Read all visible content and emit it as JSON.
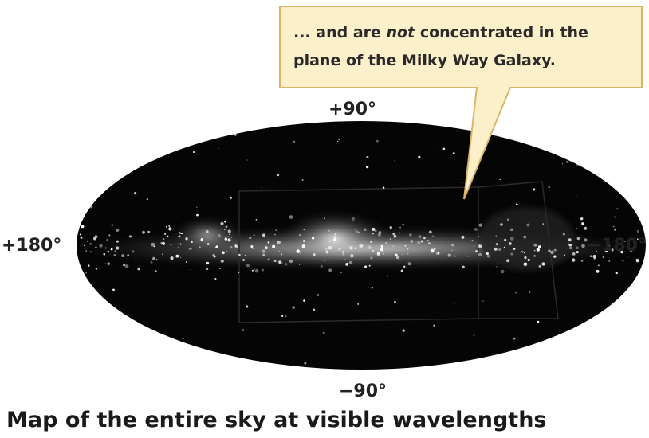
{
  "callout": {
    "line1_start": "... and are ",
    "line1_italic": "not",
    "line1_end": " concentrated in the",
    "line2": "plane of the Milky Way Galaxy."
  },
  "labels": {
    "top": "+90°",
    "left": "+180°",
    "right": "−180°",
    "bottom": "−90°"
  },
  "caption": "Map of the entire sky at visible wavelengths"
}
